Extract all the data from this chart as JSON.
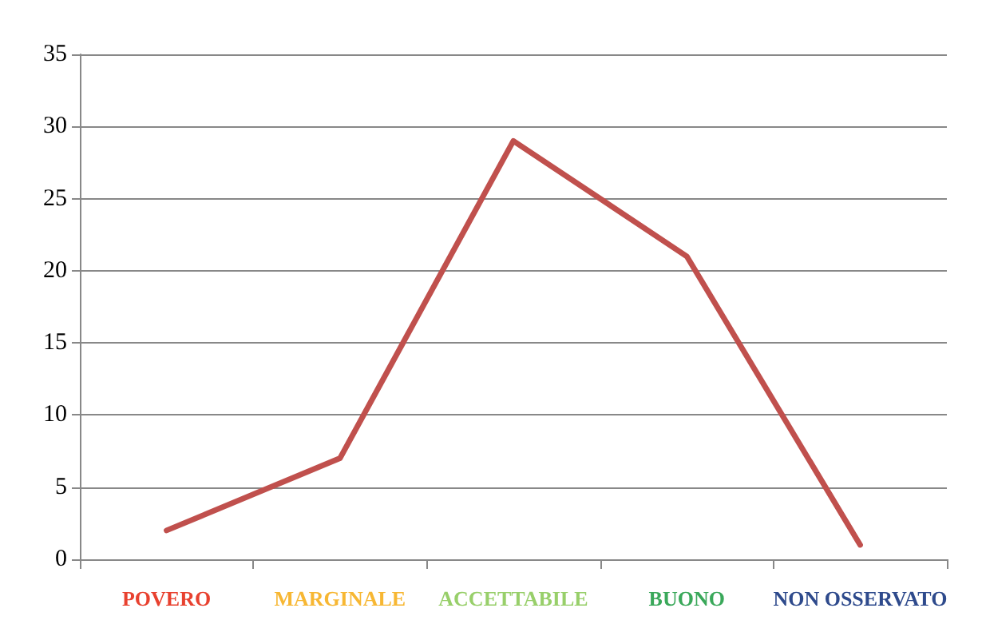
{
  "chart_data": {
    "type": "line",
    "categories": [
      "POVERO",
      "MARGINALE",
      "ACCETTABILE",
      "BUONO",
      "NON OSSERVATO"
    ],
    "series": [
      {
        "color": "#c0504d",
        "values": [
          2,
          7,
          29,
          21,
          1
        ]
      }
    ],
    "ylim": [
      0,
      35
    ],
    "yticks": [
      0,
      5,
      10,
      15,
      20,
      25,
      30,
      35
    ],
    "grid": "y",
    "marker": "none",
    "line_style": "solid"
  }
}
